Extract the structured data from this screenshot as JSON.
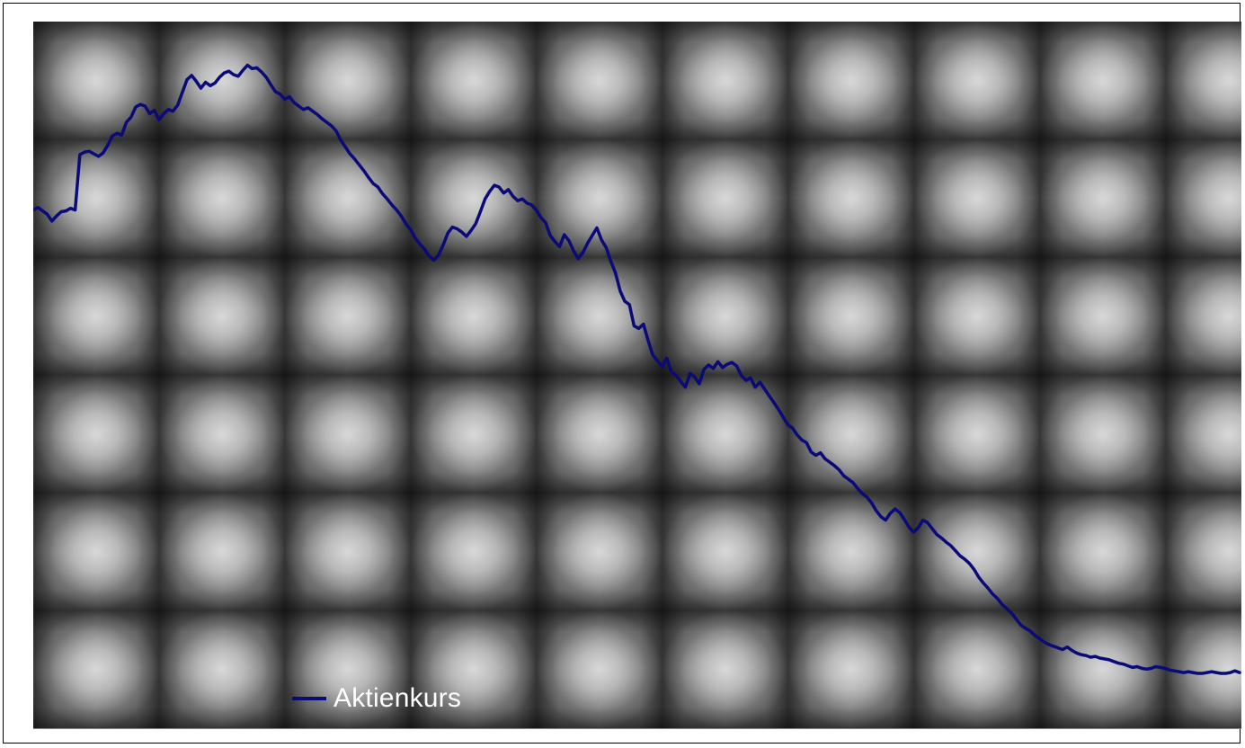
{
  "chart_data": {
    "type": "line",
    "title": "",
    "xlabel": "",
    "ylabel": "",
    "grid": false,
    "legend_position": "bottom-left",
    "series": [
      {
        "name": "Aktienkurs",
        "color": "#0a0a78",
        "values": [
          60.2,
          60.5,
          60.1,
          59.7,
          58.9,
          59.5,
          60.0,
          60.1,
          60.4,
          60.2,
          66.7,
          67.0,
          67.1,
          66.8,
          66.5,
          66.9,
          67.8,
          68.9,
          69.2,
          69.0,
          70.5,
          71.1,
          72.3,
          72.6,
          72.4,
          71.5,
          71.9,
          70.8,
          71.5,
          72.0,
          71.8,
          72.5,
          74.0,
          75.5,
          76.0,
          75.3,
          74.5,
          75.2,
          74.8,
          75.1,
          75.8,
          76.3,
          76.5,
          76.1,
          75.9,
          76.6,
          77.2,
          76.8,
          76.9,
          76.4,
          75.8,
          74.9,
          74.1,
          73.8,
          73.2,
          73.5,
          72.8,
          72.4,
          72.0,
          72.2,
          71.8,
          71.4,
          70.9,
          70.5,
          70.1,
          69.5,
          68.4,
          67.6,
          66.8,
          66.2,
          65.5,
          64.8,
          64.0,
          63.3,
          62.9,
          62.1,
          61.5,
          60.8,
          60.2,
          59.5,
          58.6,
          57.9,
          56.9,
          56.2,
          55.6,
          54.8,
          54.3,
          54.9,
          56.1,
          57.5,
          58.2,
          58.0,
          57.6,
          57.1,
          57.8,
          58.6,
          60.0,
          61.5,
          62.4,
          63.1,
          62.9,
          62.2,
          62.6,
          61.8,
          61.3,
          61.5,
          61.0,
          60.8,
          60.2,
          59.3,
          58.7,
          57.2,
          56.5,
          55.9,
          57.3,
          56.6,
          55.4,
          54.5,
          55.2,
          56.3,
          57.2,
          58.1,
          56.7,
          55.8,
          54.2,
          52.8,
          50.7,
          49.5,
          49.1,
          46.6,
          46.3,
          46.8,
          44.9,
          43.2,
          42.5,
          41.8,
          42.8,
          41.2,
          40.8,
          40.1,
          39.4,
          41.0,
          40.6,
          39.8,
          41.5,
          42.0,
          41.6,
          42.4,
          41.7,
          42.1,
          42.3,
          41.9,
          40.8,
          40.2,
          40.5,
          39.4,
          40.0,
          39.2,
          38.4,
          37.6,
          36.8,
          35.9,
          35.0,
          34.6,
          33.8,
          33.2,
          32.9,
          31.8,
          31.4,
          31.7,
          31.0,
          30.6,
          30.2,
          29.7,
          29.0,
          28.6,
          28.2,
          27.5,
          26.9,
          26.5,
          25.8,
          24.9,
          24.2,
          23.8,
          24.6,
          25.1,
          24.7,
          23.9,
          23.0,
          22.4,
          22.9,
          23.8,
          23.5,
          22.8,
          22.1,
          21.7,
          21.2,
          20.8,
          20.2,
          19.6,
          19.2,
          18.7,
          18.0,
          17.1,
          16.4,
          15.8,
          15.1,
          14.6,
          13.9,
          13.4,
          12.9,
          12.2,
          11.5,
          11.1,
          10.8,
          10.3,
          9.9,
          9.5,
          9.2,
          9.0,
          8.8,
          8.6,
          8.9,
          8.5,
          8.2,
          8.0,
          7.9,
          7.7,
          7.8,
          7.6,
          7.5,
          7.4,
          7.2,
          7.0,
          6.9,
          6.7,
          6.5,
          6.6,
          6.4,
          6.3,
          6.4,
          6.6,
          6.5,
          6.4,
          6.2,
          6.1,
          6.0,
          5.9,
          6.0,
          5.9,
          5.8,
          5.8,
          5.9,
          6.0,
          5.9,
          5.8,
          5.8,
          5.9,
          6.1,
          5.9
        ]
      }
    ]
  }
}
